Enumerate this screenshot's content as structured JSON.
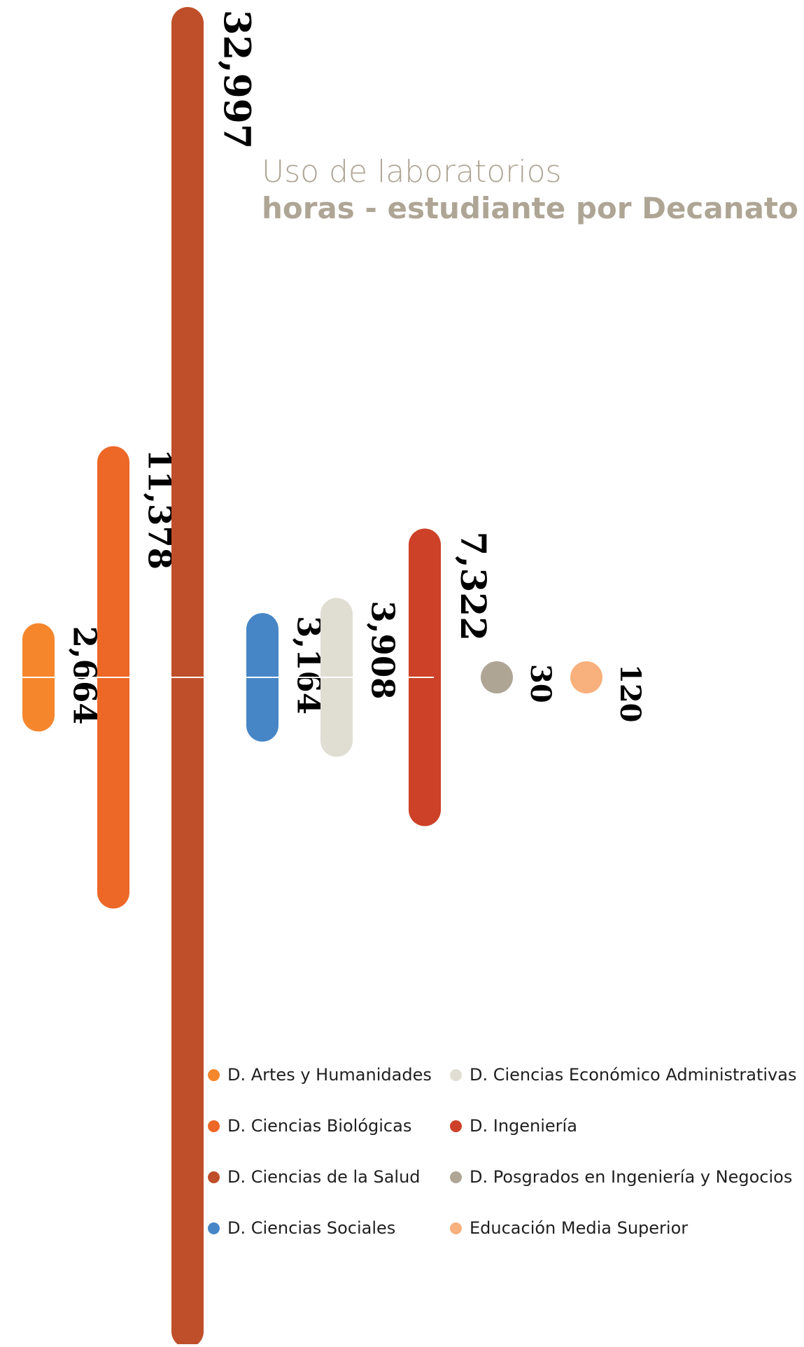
{
  "title": {
    "line1": "Uso de laboratorios",
    "line2": "horas - estudiante por Decanato"
  },
  "chart_data": {
    "type": "bar",
    "orientation": "vertical-centered",
    "categories": [
      "D. Artes y Humanidades",
      "D. Ciencias Biológicas",
      "D. Ciencias de la Salud",
      "D. Ciencias Sociales",
      "D. Ciencias Económico Administrativas",
      "D. Ingeniería",
      "D. Posgrados en Ingeniería y Negocios",
      "Educación Media Superior"
    ],
    "values": [
      2664,
      11378,
      32997,
      3164,
      3908,
      7322,
      30,
      120
    ],
    "value_labels": [
      "2,664",
      "11,378",
      "32,997",
      "3,164",
      "3,908",
      "7,322",
      "30",
      "120"
    ],
    "colors": [
      "#f5862c",
      "#ed6726",
      "#bf4f2a",
      "#4686c6",
      "#e0ddd3",
      "#cc4128",
      "#aea595",
      "#f8b07c"
    ],
    "legend": [
      {
        "label": "D. Artes y Humanidades",
        "color": "#f5862c"
      },
      {
        "label": "D. Ciencias Económico Administrativas",
        "color": "#e0ddd3"
      },
      {
        "label": "D. Ciencias Biológicas",
        "color": "#ed6726"
      },
      {
        "label": "D. Ingeniería",
        "color": "#cc4128"
      },
      {
        "label": "D. Ciencias de la Salud",
        "color": "#bf4f2a"
      },
      {
        "label": "D. Posgrados en Ingeniería y Negocios",
        "color": "#aea595"
      },
      {
        "label": "D. Ciencias Sociales",
        "color": "#4686c6"
      },
      {
        "label": "Educación Media Superior",
        "color": "#f8b07c"
      }
    ],
    "legend_placement": "bottom-right",
    "grid": false
  }
}
